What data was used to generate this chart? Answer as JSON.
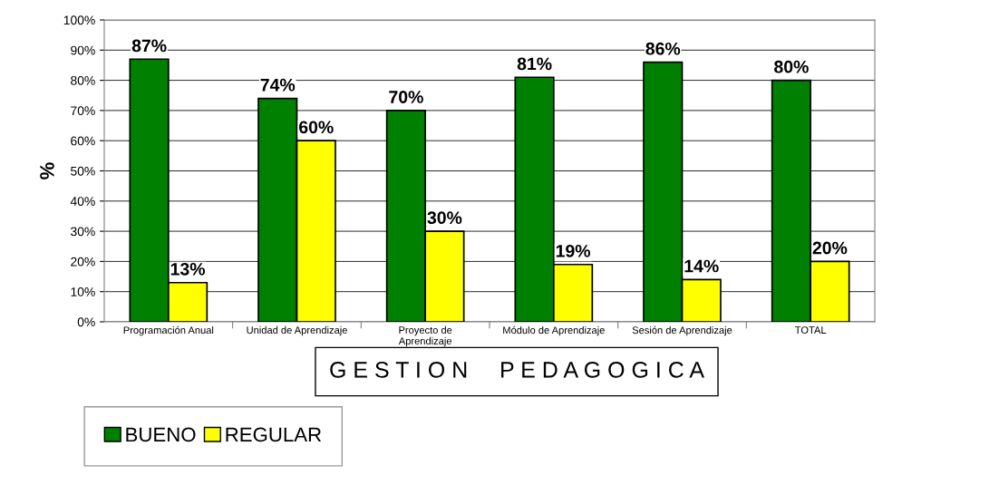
{
  "chart_data": {
    "type": "bar",
    "categories": [
      "Programación Anual",
      "Unidad de Aprendizaje",
      "Proyecto de\nAprendizaje",
      "Módulo de Aprendizaje",
      "Sesión de Aprendizaje",
      "TOTAL"
    ],
    "series": [
      {
        "name": "BUENO",
        "color": "#008000",
        "values": [
          87,
          74,
          70,
          81,
          86,
          80
        ],
        "value_labels": [
          "87%",
          "74%",
          "70%",
          "81%",
          "86%",
          "80%"
        ]
      },
      {
        "name": "REGULAR",
        "color": "#ffff00",
        "values": [
          13,
          60,
          30,
          19,
          14,
          20
        ],
        "value_labels": [
          "13%",
          "60%",
          "30%",
          "19%",
          "14%",
          "20%"
        ]
      }
    ],
    "xlabel": "G E S T I O N     P E D A G O G I C A",
    "ylabel": "%",
    "ylim": [
      0,
      100
    ],
    "yticks": [
      {
        "value": 0,
        "label": "0%"
      },
      {
        "value": 10,
        "label": "10%"
      },
      {
        "value": 20,
        "label": "20%"
      },
      {
        "value": 30,
        "label": "30%"
      },
      {
        "value": 40,
        "label": "40%"
      },
      {
        "value": 50,
        "label": "50%"
      },
      {
        "value": 60,
        "label": "60%"
      },
      {
        "value": 70,
        "label": "70%"
      },
      {
        "value": 80,
        "label": "80%"
      },
      {
        "value": 90,
        "label": "90%"
      },
      {
        "value": 100,
        "label": "100%"
      }
    ],
    "grid": "y",
    "legend": "bottom left"
  }
}
